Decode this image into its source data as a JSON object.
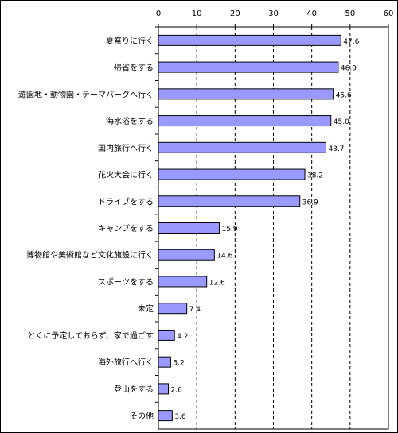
{
  "chart_data": {
    "type": "bar",
    "orientation": "horizontal",
    "categories": [
      "夏祭りに行く",
      "帰省をする",
      "遊園地・動物園・テーマパークへ行く",
      "海水浴をする",
      "国内旅行へ行く",
      "花火大会に行く",
      "ドライブをする",
      "キャンプをする",
      "博物館や美術館など文化施設に行く",
      "スポーツをする",
      "未定",
      "とくに予定しておらず、家で過ごす",
      "海外旅行へ行く",
      "登山をする",
      "その他"
    ],
    "values": [
      47.6,
      46.9,
      45.6,
      45.0,
      43.7,
      38.2,
      36.9,
      15.9,
      14.6,
      12.6,
      7.4,
      4.2,
      3.2,
      2.6,
      3.6
    ],
    "value_labels": [
      "47.6",
      "46.9",
      "45.6",
      "45.0",
      "43.7",
      "38.2",
      "36.9",
      "15.9",
      "14.6",
      "12.6",
      "7.4",
      "4.2",
      "3.2",
      "2.6",
      "3.6"
    ],
    "xlim": [
      0,
      60
    ],
    "xticks": [
      "0",
      "10",
      "20",
      "30",
      "40",
      "50",
      "60"
    ],
    "grid": "vertical-dashed",
    "bar_color": "#9999ff",
    "bar_edge_color": "#000000",
    "title": "",
    "xlabel": "",
    "ylabel": ""
  }
}
